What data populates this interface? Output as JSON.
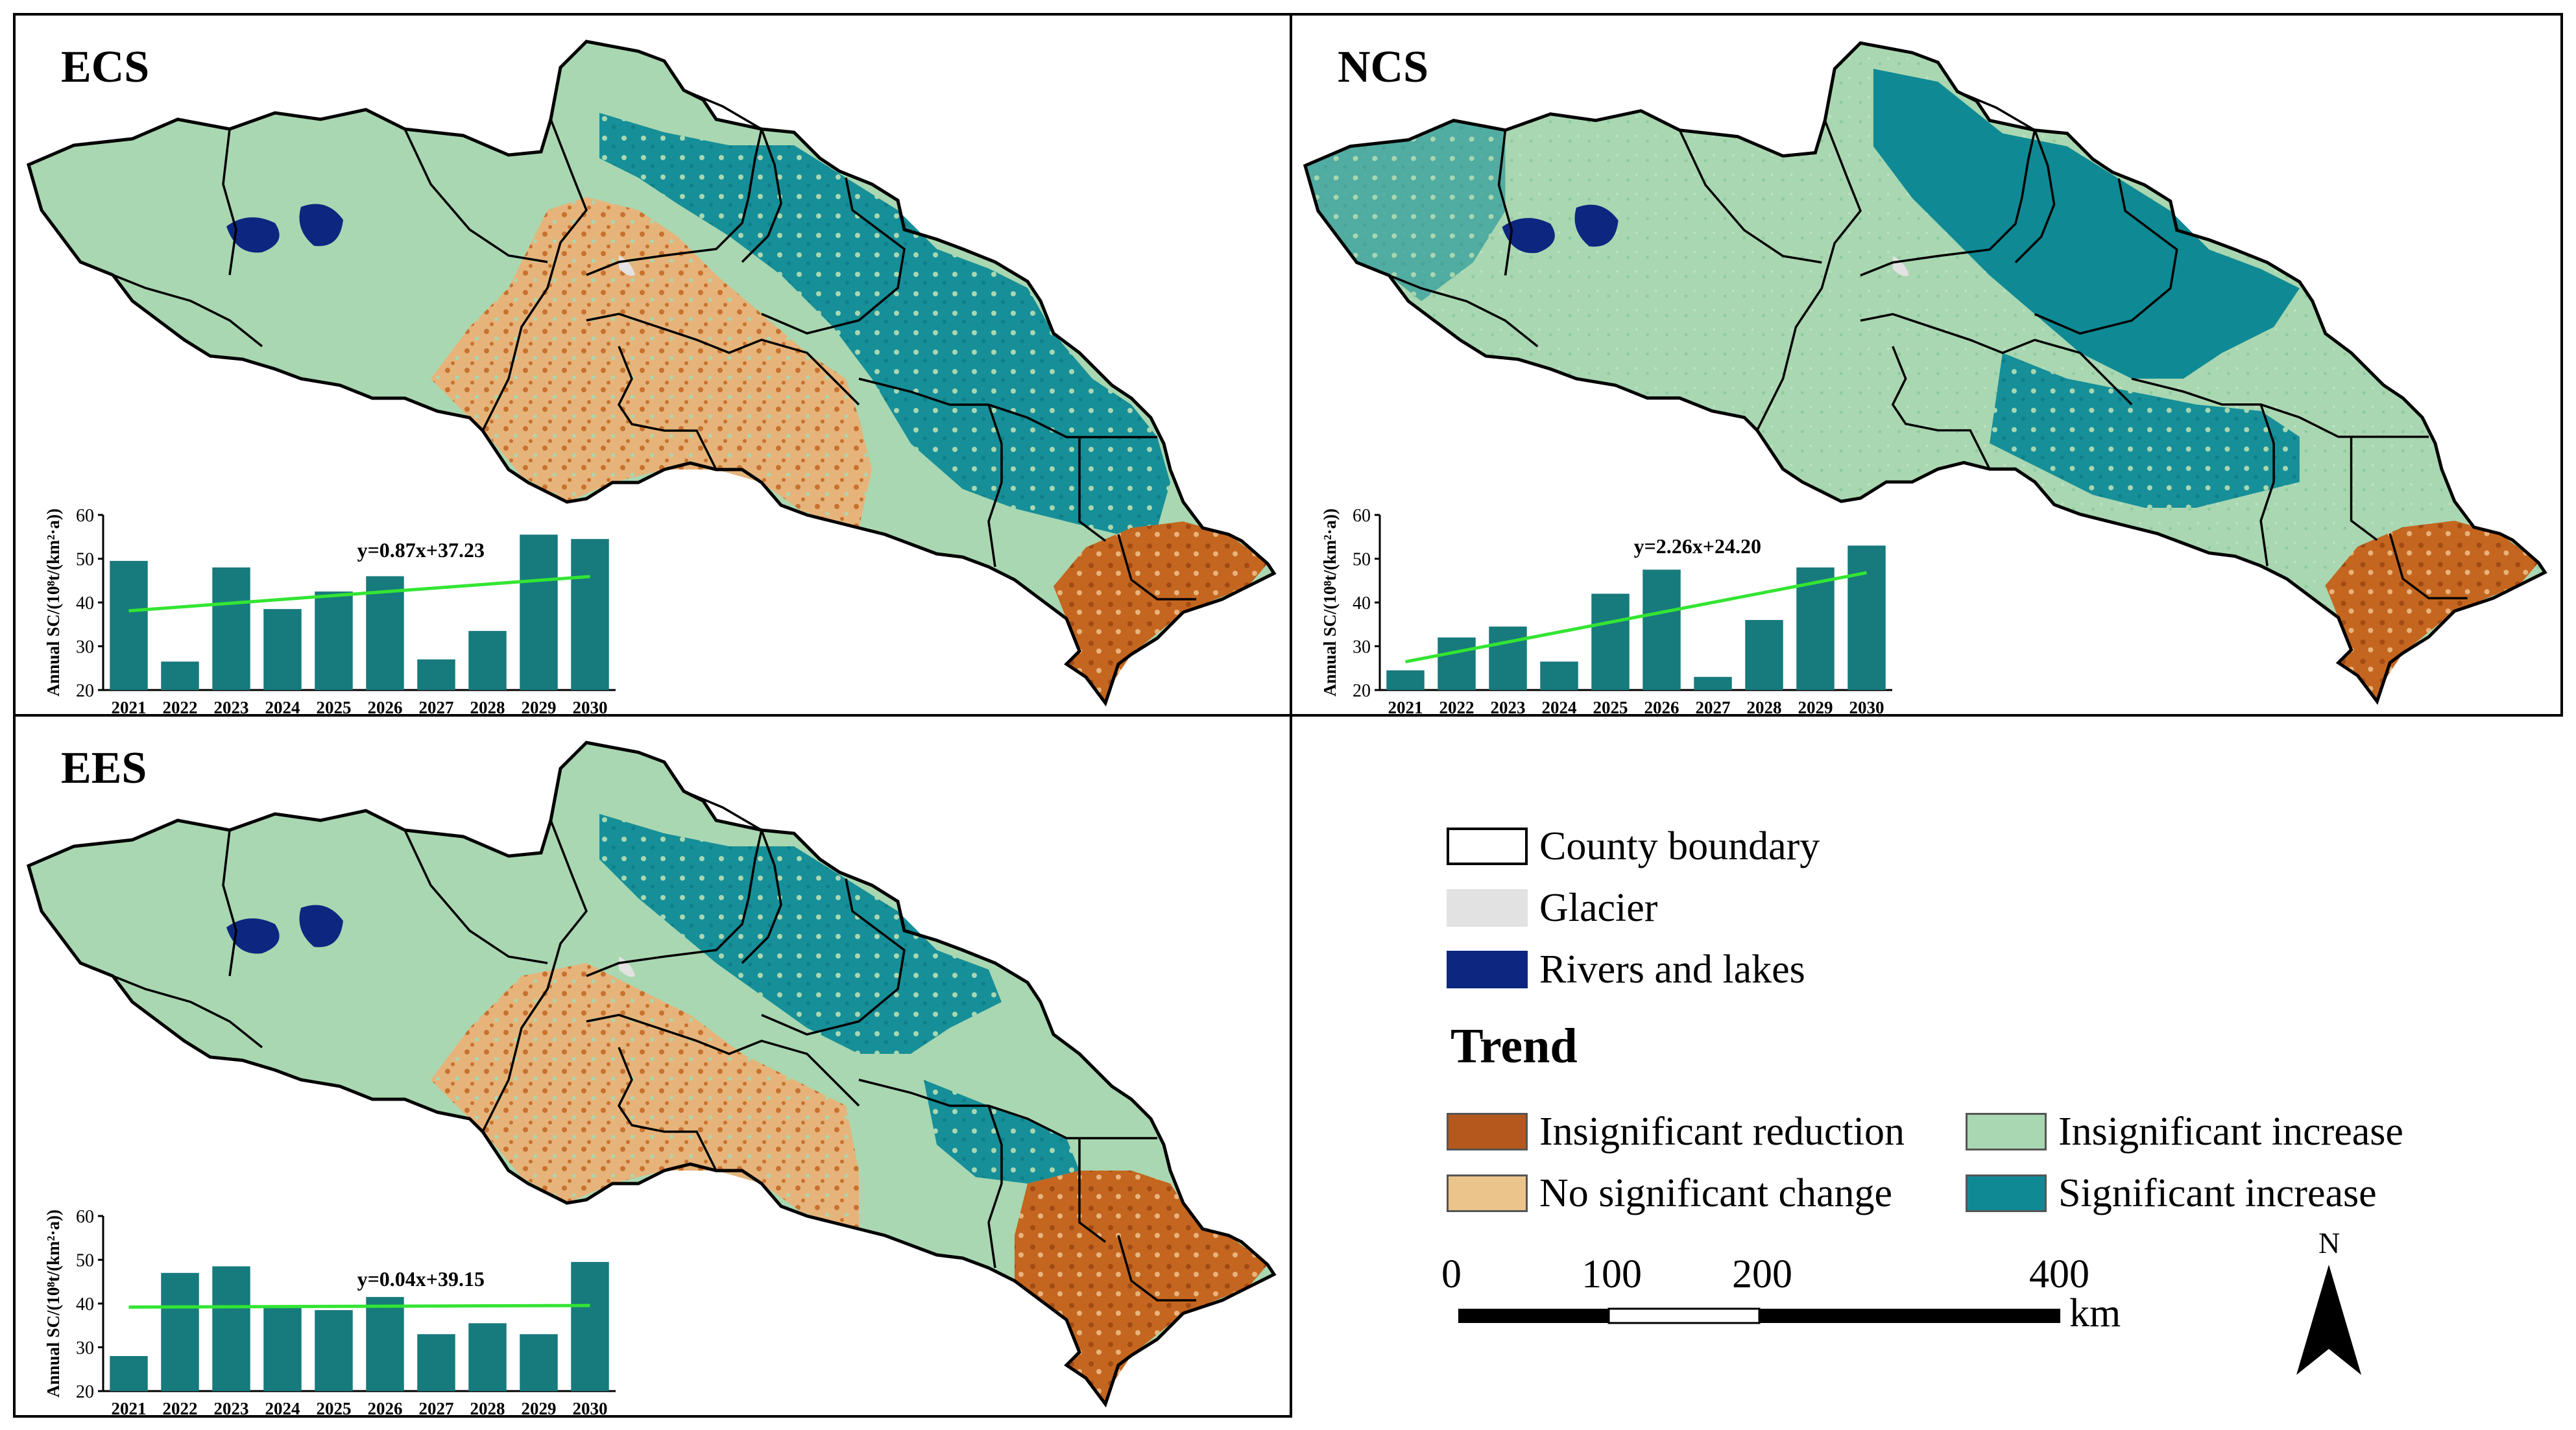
{
  "panels": [
    {
      "id": "ECS",
      "title": "ECS",
      "chart_data": {
        "type": "bar",
        "categories": [
          "2021",
          "2022",
          "2023",
          "2024",
          "2025",
          "2026",
          "2027",
          "2028",
          "2029",
          "2030"
        ],
        "values": [
          49.5,
          26.5,
          48,
          38.5,
          42.5,
          46,
          27,
          33.5,
          55.5,
          54.5
        ],
        "trend": {
          "slope": 0.87,
          "intercept": 37.23,
          "label": "y=0.87x+37.23"
        },
        "ylabel": "Annual SC/(10⁸t/(km²·a))",
        "ylim": [
          20,
          60
        ],
        "yticks": [
          20,
          30,
          40,
          50,
          60
        ],
        "bar_color": "#177a7c",
        "trend_color": "#33e533"
      }
    },
    {
      "id": "NCS",
      "title": "NCS",
      "chart_data": {
        "type": "bar",
        "categories": [
          "2021",
          "2022",
          "2023",
          "2024",
          "2025",
          "2026",
          "2027",
          "2028",
          "2029",
          "2030"
        ],
        "values": [
          24.5,
          32,
          34.5,
          26.5,
          42,
          47.5,
          23,
          36,
          48,
          53
        ],
        "trend": {
          "slope": 2.26,
          "intercept": 24.2,
          "label": "y=2.26x+24.20"
        },
        "ylabel": "Annual SC/(10⁸t/(km²·a))",
        "ylim": [
          20,
          60
        ],
        "yticks": [
          20,
          30,
          40,
          50,
          60
        ],
        "bar_color": "#177a7c",
        "trend_color": "#33e533"
      }
    },
    {
      "id": "EES",
      "title": "EES",
      "chart_data": {
        "type": "bar",
        "categories": [
          "2021",
          "2022",
          "2023",
          "2024",
          "2025",
          "2026",
          "2027",
          "2028",
          "2029",
          "2030"
        ],
        "values": [
          28,
          47,
          48.5,
          39,
          38.5,
          41.5,
          33,
          35.5,
          33,
          49.5
        ],
        "trend": {
          "slope": 0.04,
          "intercept": 39.15,
          "label": "y=0.04x+39.15"
        },
        "ylabel": "Annual SC/(10⁸t/(km²·a))",
        "ylim": [
          20,
          60
        ],
        "yticks": [
          20,
          30,
          40,
          50,
          60
        ],
        "bar_color": "#177a7c",
        "trend_color": "#33e533"
      }
    }
  ],
  "legend": {
    "items": [
      {
        "label": "County boundary",
        "color": "#ffffff",
        "icon": "county-boundary-swatch"
      },
      {
        "label": "Glacier",
        "color": "#e2e2e2",
        "icon": "glacier-swatch"
      },
      {
        "label": "Rivers and lakes",
        "color": "#0d2680",
        "icon": "rivers-lakes-swatch"
      }
    ],
    "trend_title": "Trend",
    "trend_items": [
      {
        "label": "Insignificant reduction",
        "color": "#b5581d"
      },
      {
        "label": "No significant change",
        "color": "#eac48a"
      },
      {
        "label": "Insignificant increase",
        "color": "#a9d7b1"
      },
      {
        "label": "Significant increase",
        "color": "#0f8a95"
      }
    ]
  },
  "scale_bar": {
    "ticks": [
      "0",
      "100",
      "200",
      "400"
    ],
    "unit": "km"
  },
  "north_arrow": {
    "label": "N"
  }
}
